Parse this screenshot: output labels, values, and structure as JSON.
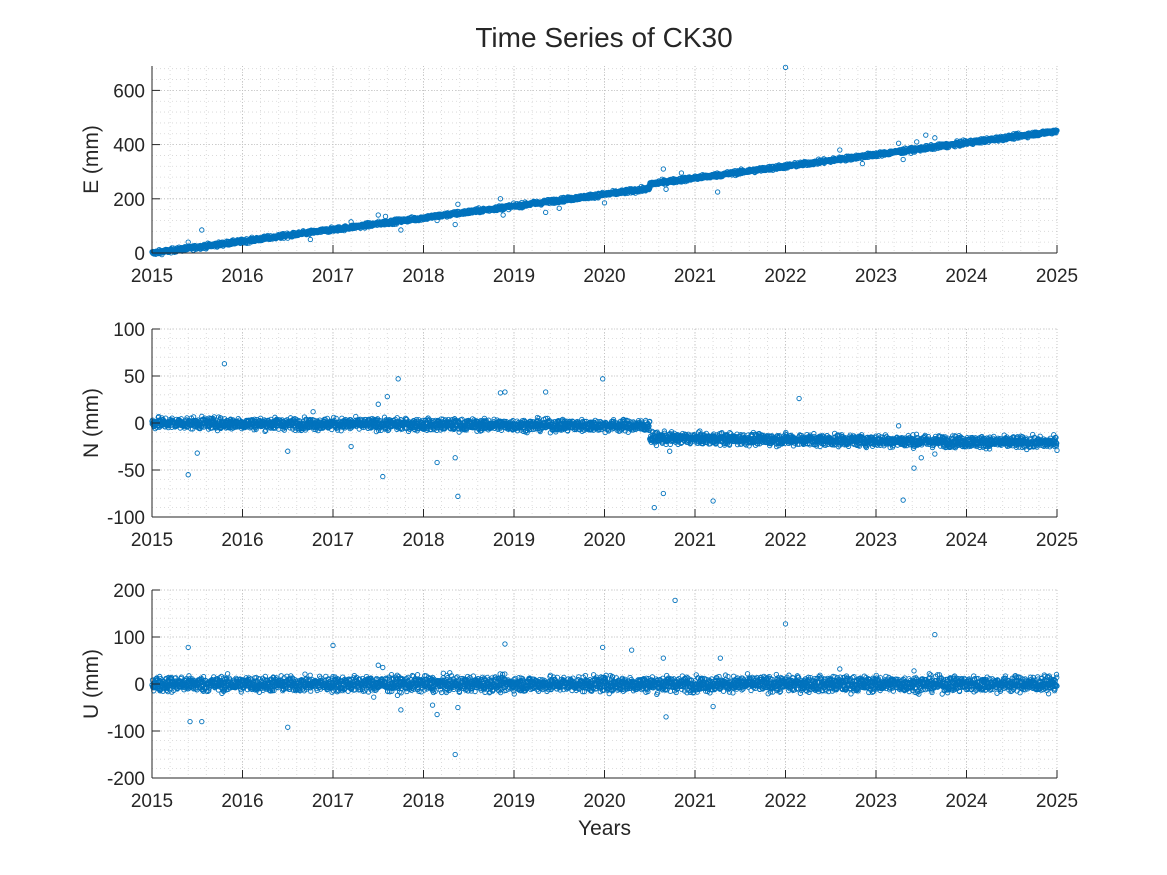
{
  "figure": {
    "title": "Time Series of CK30",
    "marker_color": "#0072BD",
    "grid": "major solid + minor dotted"
  },
  "chart_data": [
    {
      "type": "scatter",
      "ylabel": "E (mm)",
      "xlabel": "",
      "xlim": [
        2015,
        2025
      ],
      "ylim": [
        0,
        690
      ],
      "xticks": [
        "2015",
        "2016",
        "2017",
        "2018",
        "2019",
        "2020",
        "2021",
        "2022",
        "2023",
        "2024",
        "2025"
      ],
      "yticks": [
        "0",
        "200",
        "400",
        "600"
      ],
      "ytick_values": [
        0,
        200,
        400,
        600
      ],
      "trend": [
        {
          "x_start": 2015.0,
          "x_end": 2020.5,
          "y_start": 0,
          "y_end": 238
        },
        {
          "x_start": 2020.5,
          "x_end": 2025.0,
          "y_start": 255,
          "y_end": 450
        }
      ],
      "noise_mm": 4,
      "series": [
        {
          "x": [
            2015.4,
            2015.55,
            2016.5,
            2016.75,
            2017.2,
            2017.5,
            2017.58,
            2017.75,
            2018.15,
            2018.35,
            2018.38,
            2018.85,
            2018.88,
            2019.35,
            2019.5,
            2020.0,
            2020.65,
            2020.68,
            2020.85,
            2021.25,
            2021.6,
            2022.0,
            2022.15,
            2022.6,
            2022.85,
            2023.25,
            2023.3,
            2023.45,
            2023.55,
            2023.65
          ],
          "y": [
            40,
            85,
            55,
            50,
            115,
            140,
            135,
            85,
            120,
            105,
            180,
            200,
            140,
            150,
            165,
            185,
            310,
            235,
            295,
            225,
            300,
            685,
            325,
            380,
            330,
            405,
            345,
            410,
            435,
            425
          ]
        }
      ]
    },
    {
      "type": "scatter",
      "ylabel": "N (mm)",
      "xlabel": "",
      "xlim": [
        2015,
        2025
      ],
      "ylim": [
        -100,
        100
      ],
      "xticks": [
        "2015",
        "2016",
        "2017",
        "2018",
        "2019",
        "2020",
        "2021",
        "2022",
        "2023",
        "2024",
        "2025"
      ],
      "yticks": [
        "-100",
        "-50",
        "0",
        "50",
        "100"
      ],
      "ytick_values": [
        -100,
        -50,
        0,
        50,
        100
      ],
      "trend": [
        {
          "x_start": 2015.0,
          "x_end": 2020.5,
          "y_start": 0,
          "y_end": -3
        },
        {
          "x_start": 2020.5,
          "x_end": 2025.0,
          "y_start": -16,
          "y_end": -21
        }
      ],
      "noise_mm": 3,
      "series": [
        {
          "x": [
            2015.4,
            2015.5,
            2015.8,
            2016.5,
            2016.78,
            2017.2,
            2017.5,
            2017.55,
            2017.6,
            2017.72,
            2018.15,
            2018.25,
            2018.35,
            2018.38,
            2018.85,
            2018.9,
            2019.35,
            2019.98,
            2020.55,
            2020.65,
            2020.72,
            2021.2,
            2022.15,
            2023.25,
            2023.3,
            2023.42,
            2023.5,
            2023.65
          ],
          "y": [
            -55,
            -32,
            63,
            -30,
            12,
            -25,
            20,
            -57,
            28,
            47,
            -42,
            0,
            -37,
            -78,
            32,
            33,
            33,
            47,
            -90,
            -75,
            -30,
            -83,
            26,
            -3,
            -82,
            -48,
            -37,
            -33
          ]
        }
      ]
    },
    {
      "type": "scatter",
      "ylabel": "U (mm)",
      "xlabel": "Years",
      "xlim": [
        2015,
        2025
      ],
      "ylim": [
        -200,
        200
      ],
      "xticks": [
        "2015",
        "2016",
        "2017",
        "2018",
        "2019",
        "2020",
        "2021",
        "2022",
        "2023",
        "2024",
        "2025"
      ],
      "yticks": [
        "-200",
        "-100",
        "0",
        "100",
        "200"
      ],
      "ytick_values": [
        -200,
        -100,
        0,
        100,
        200
      ],
      "trend": [
        {
          "x_start": 2015.0,
          "x_end": 2025.0,
          "y_start": 0,
          "y_end": 0
        }
      ],
      "noise_mm": 8,
      "series": [
        {
          "x": [
            2015.4,
            2015.42,
            2015.55,
            2016.5,
            2017.0,
            2017.45,
            2017.5,
            2017.55,
            2017.75,
            2018.1,
            2018.15,
            2018.35,
            2018.38,
            2018.9,
            2019.98,
            2020.3,
            2020.65,
            2020.68,
            2020.78,
            2021.2,
            2021.28,
            2022.0,
            2022.6,
            2023.42,
            2023.65
          ],
          "y": [
            78,
            -80,
            -80,
            -92,
            82,
            -28,
            40,
            35,
            -55,
            -45,
            -65,
            -150,
            -50,
            85,
            78,
            72,
            55,
            -70,
            178,
            -48,
            55,
            128,
            32,
            28,
            105
          ]
        }
      ]
    }
  ]
}
